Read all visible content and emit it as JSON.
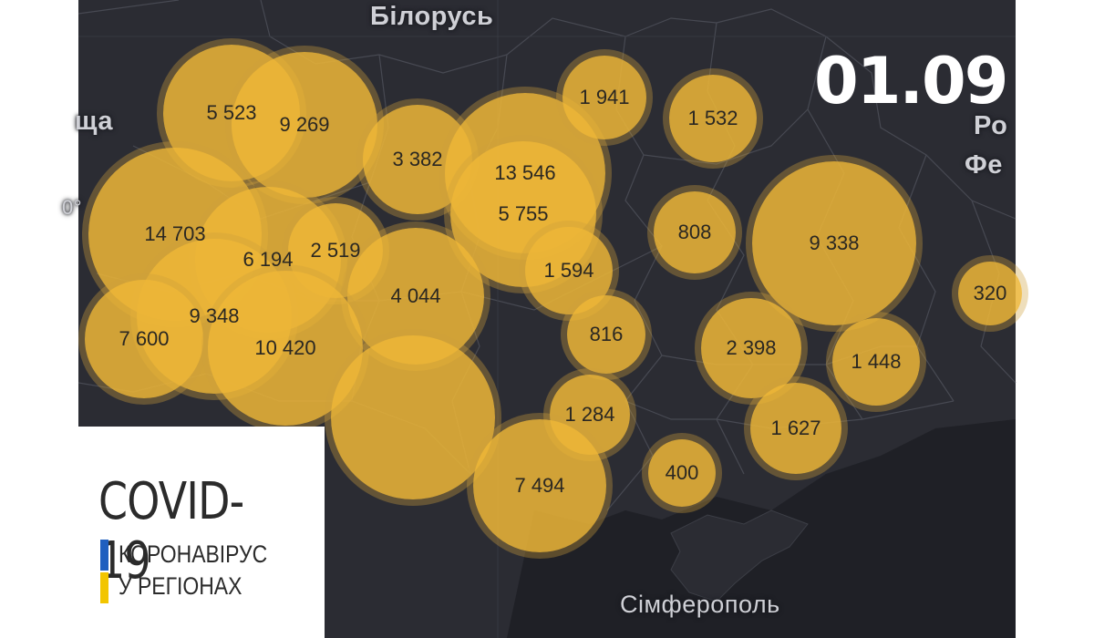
{
  "date": "01.09",
  "places": [
    {
      "id": "belarus",
      "label": "Білорусь"
    },
    {
      "id": "poland",
      "label": "ща"
    },
    {
      "id": "russia1",
      "label": "Ро"
    },
    {
      "id": "russia2",
      "label": "Фе"
    },
    {
      "id": "simferopol",
      "label": "Сімферополь"
    },
    {
      "id": "degree",
      "label": "0°"
    }
  ],
  "bubbles": [
    {
      "label": "5 523"
    },
    {
      "label": "9 269"
    },
    {
      "label": "3 382"
    },
    {
      "label": "13 546"
    },
    {
      "label": "5 755"
    },
    {
      "label": "1 941"
    },
    {
      "label": "1 532"
    },
    {
      "label": "14 703"
    },
    {
      "label": "6 194"
    },
    {
      "label": "2 519"
    },
    {
      "label": "4 044"
    },
    {
      "label": "1 594"
    },
    {
      "label": "808"
    },
    {
      "label": "9 338"
    },
    {
      "label": "320"
    },
    {
      "label": "9 348"
    },
    {
      "label": "7 600"
    },
    {
      "label": "10 420"
    },
    {
      "label": "816"
    },
    {
      "label": "2 398"
    },
    {
      "label": "1 448"
    },
    {
      "label": ""
    },
    {
      "label": "1 284"
    },
    {
      "label": "1 627"
    },
    {
      "label": "7 494"
    },
    {
      "label": "400"
    }
  ],
  "legend": {
    "title": "COVID-19",
    "line1": "КОРОНАВІРУС",
    "line2": "У РЕГІОНАХ",
    "flag_colors": [
      "#1f5fbf",
      "#f2c500"
    ]
  }
}
